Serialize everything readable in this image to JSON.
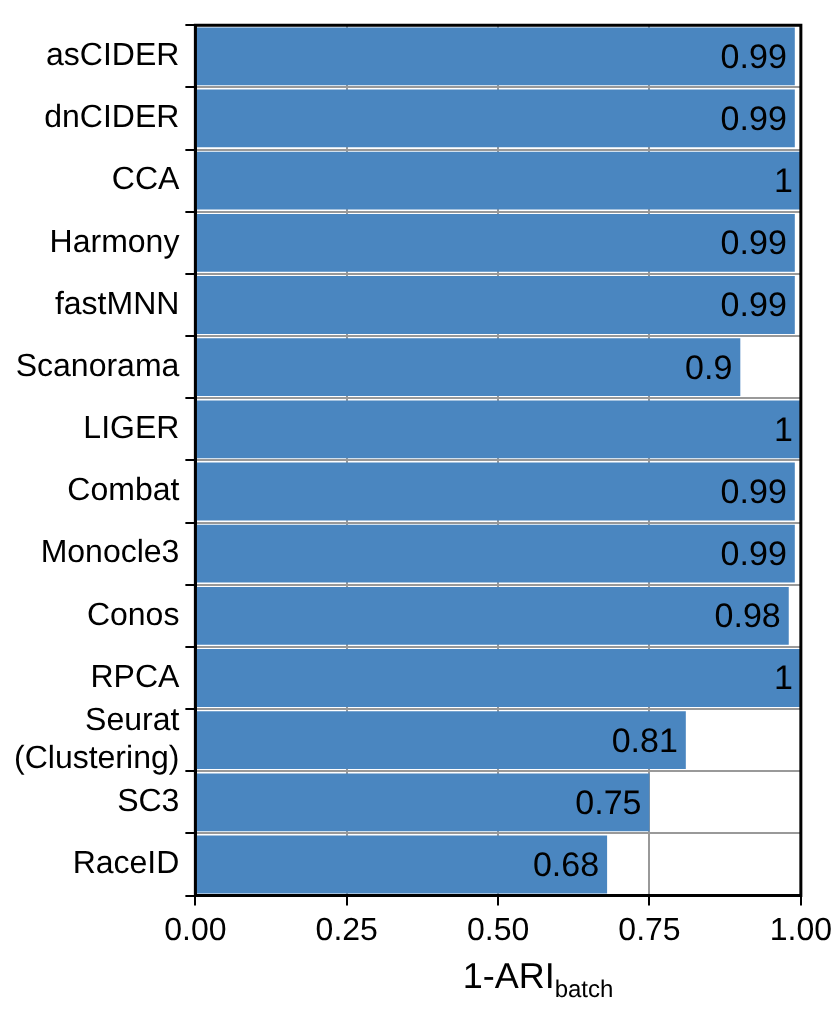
{
  "chart_data": {
    "type": "bar",
    "orientation": "horizontal",
    "xlabel": "1-ARI$_{batch}$",
    "categories": [
      "asCIDER",
      "dnCIDER",
      "CCA",
      "Harmony",
      "fastMNN",
      "Scanorama",
      "LIGER",
      "Combat",
      "Monocle3",
      "Conos",
      "RPCA",
      "Seurat\n(Clustering)",
      "SC3",
      "RaceID"
    ],
    "values": [
      0.99,
      0.99,
      1,
      0.99,
      0.99,
      0.9,
      1,
      0.99,
      0.99,
      0.98,
      1,
      0.81,
      0.75,
      0.68
    ],
    "color": "#4a86c0",
    "xlim": [
      0,
      1
    ],
    "xticks": [
      {
        "value": 0,
        "label": "0.00"
      },
      {
        "value": 0.25,
        "label": "0.25"
      },
      {
        "value": 0.5,
        "label": "0.50"
      },
      {
        "value": 0.75,
        "label": "0.75"
      },
      {
        "value": 1,
        "label": "1.00"
      }
    ],
    "grid": true,
    "data_labels": true
  }
}
